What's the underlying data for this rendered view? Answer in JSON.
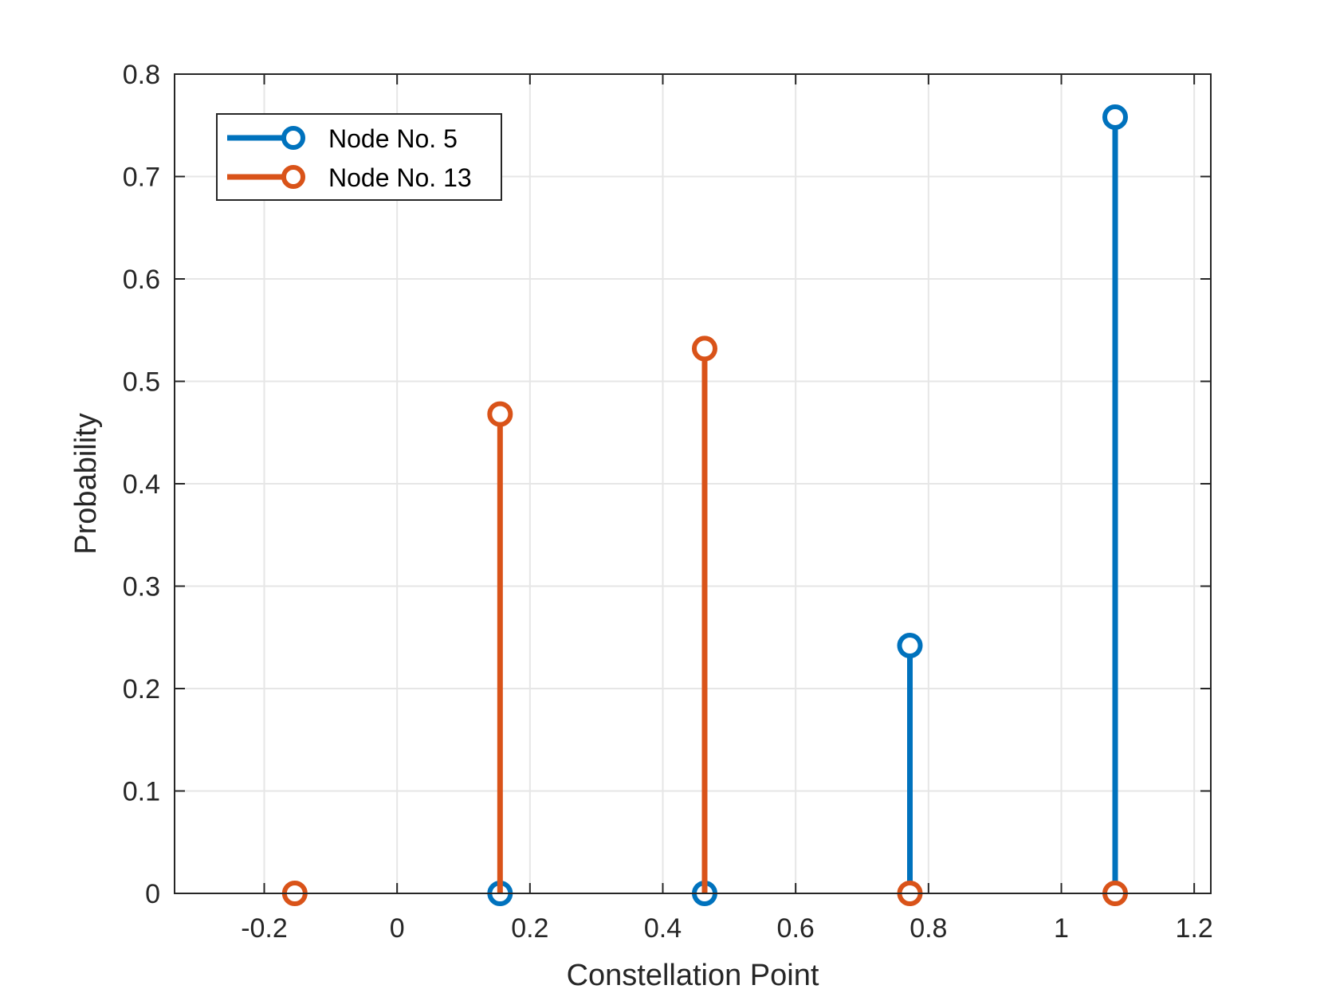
{
  "chart_data": {
    "type": "stem",
    "xlabel": "Constellation Point",
    "ylabel": "Probability",
    "xlim": [
      -0.335,
      1.225
    ],
    "ylim": [
      0,
      0.8
    ],
    "xticks": [
      "-0.2",
      "0",
      "0.2",
      "0.4",
      "0.6",
      "0.8",
      "1",
      "1.2"
    ],
    "xtick_values": [
      -0.2,
      0,
      0.2,
      0.4,
      0.6,
      0.8,
      1,
      1.2
    ],
    "yticks": [
      "0",
      "0.1",
      "0.2",
      "0.3",
      "0.4",
      "0.5",
      "0.6",
      "0.7",
      "0.8"
    ],
    "ytick_values": [
      0,
      0.1,
      0.2,
      0.3,
      0.4,
      0.5,
      0.6,
      0.7,
      0.8
    ],
    "grid": true,
    "legend_position": "top-left",
    "series": [
      {
        "name": "Node No. 5",
        "color": "#0072BD",
        "x": [
          0.155,
          0.463,
          0.772,
          1.081
        ],
        "y": [
          0,
          0,
          0.242,
          0.758
        ]
      },
      {
        "name": "Node No. 13",
        "color": "#D95319",
        "x": [
          -0.154,
          0.155,
          0.463,
          0.772,
          1.081
        ],
        "y": [
          0,
          0.468,
          0.532,
          0,
          0
        ]
      }
    ]
  }
}
